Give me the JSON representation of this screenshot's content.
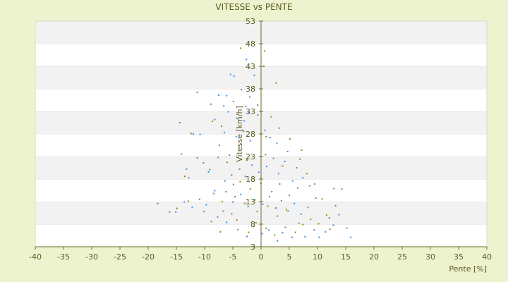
{
  "chart_data": {
    "type": "scatter",
    "title": "VITESSE vs PENTE",
    "xlabel": "Pente [%]",
    "ylabel": "Vitesse [km/h]",
    "xlim": [
      -40,
      40
    ],
    "ylim": [
      3,
      53
    ],
    "x_ticks": [
      -40,
      -35,
      -30,
      -25,
      -20,
      -15,
      -10,
      -5,
      0,
      5,
      10,
      15,
      20,
      25,
      30,
      35,
      40
    ],
    "y_ticks": [
      3,
      8,
      13,
      18,
      23,
      28,
      33,
      38,
      43,
      48,
      53
    ],
    "grid": "horizontal-bands",
    "legend": "none",
    "series": [
      {
        "color": "#3f8fd8",
        "points": [
          [
            -5.4,
            41.2
          ],
          [
            -4.8,
            40.8
          ],
          [
            -2.6,
            44.5
          ],
          [
            -1.2,
            41.0
          ],
          [
            -3.5,
            37.8
          ],
          [
            -11.3,
            37.2
          ],
          [
            -7.5,
            36.6
          ],
          [
            -6.1,
            36.5
          ],
          [
            -2.0,
            36.2
          ],
          [
            -6.6,
            34.2
          ],
          [
            -8.9,
            34.6
          ],
          [
            -2.7,
            34.1
          ],
          [
            -5.8,
            32.9
          ],
          [
            -2.2,
            32.8
          ],
          [
            -4.3,
            31.5
          ],
          [
            -8.2,
            31.2
          ],
          [
            -0.6,
            32.2
          ],
          [
            -3.0,
            30.9
          ],
          [
            -12.0,
            28.0
          ],
          [
            -10.8,
            27.9
          ],
          [
            -14.1,
            23.5
          ],
          [
            -6.5,
            28.3
          ],
          [
            -4.4,
            27.4
          ],
          [
            -1.9,
            26.5
          ],
          [
            -7.4,
            25.5
          ],
          [
            0.7,
            28.8
          ],
          [
            1.6,
            27.2
          ],
          [
            2.8,
            25.9
          ],
          [
            4.7,
            24.1
          ],
          [
            -13.2,
            20.2
          ],
          [
            -12.8,
            18.3
          ],
          [
            -10.2,
            21.6
          ],
          [
            -9.3,
            19.6
          ],
          [
            -7.6,
            22.8
          ],
          [
            -6.4,
            17.6
          ],
          [
            -5.6,
            23.3
          ],
          [
            -8.2,
            15.4
          ],
          [
            -9.7,
            12.3
          ],
          [
            -10.9,
            13.5
          ],
          [
            -12.2,
            11.8
          ],
          [
            -13.6,
            12.9
          ],
          [
            -15.1,
            10.7
          ],
          [
            -7.7,
            9.6
          ],
          [
            -6.1,
            8.4
          ],
          [
            -5.2,
            10.3
          ],
          [
            -4.1,
            6.8
          ],
          [
            -2.5,
            5.3
          ],
          [
            -1.3,
            7.5
          ],
          [
            0.2,
            5.9
          ],
          [
            1.4,
            6.7
          ],
          [
            2.9,
            4.3
          ],
          [
            3.8,
            6.1
          ],
          [
            5.5,
            5.1
          ],
          [
            6.7,
            8.2
          ],
          [
            7.8,
            5.2
          ],
          [
            9.4,
            6.7
          ],
          [
            10.3,
            5.1
          ],
          [
            11.4,
            6.3
          ],
          [
            12.1,
            9.4
          ],
          [
            12.8,
            7.8
          ],
          [
            13.8,
            10.1
          ],
          [
            14.3,
            15.8
          ],
          [
            15.2,
            7.1
          ],
          [
            15.9,
            5.1
          ],
          [
            8.6,
            16.5
          ],
          [
            9.7,
            13.8
          ],
          [
            7.4,
            18.3
          ],
          [
            6.3,
            20.5
          ],
          [
            5.6,
            17.6
          ],
          [
            4.2,
            21.9
          ],
          [
            3.1,
            19.2
          ],
          [
            2.2,
            22.6
          ],
          [
            1.0,
            20.8
          ],
          [
            -0.4,
            19.5
          ],
          [
            -1.6,
            21.1
          ],
          [
            -2.8,
            18.6
          ],
          [
            -3.8,
            20.2
          ],
          [
            -4.9,
            16.8
          ],
          [
            -6.2,
            15.2
          ],
          [
            -5.0,
            12.9
          ],
          [
            -3.6,
            14.6
          ],
          [
            -2.3,
            11.9
          ],
          [
            -1.1,
            13.4
          ],
          [
            0.3,
            12.4
          ],
          [
            1.5,
            14.1
          ],
          [
            2.6,
            11.6
          ],
          [
            3.6,
            13.2
          ],
          [
            4.8,
            10.9
          ],
          [
            5.9,
            12.6
          ],
          [
            7.1,
            10.2
          ],
          [
            8.3,
            11.7
          ]
        ]
      },
      {
        "color": "#8a8c1e",
        "points": [
          [
            0.6,
            46.4
          ],
          [
            -3.6,
            47.0
          ],
          [
            0.5,
            43.0
          ],
          [
            2.7,
            39.3
          ],
          [
            -0.6,
            34.4
          ],
          [
            -4.9,
            35.2
          ],
          [
            1.8,
            31.8
          ],
          [
            3.2,
            29.3
          ],
          [
            -8.6,
            30.8
          ],
          [
            -14.4,
            30.5
          ],
          [
            -12.4,
            28.1
          ],
          [
            -7.0,
            29.7
          ],
          [
            -3.1,
            28.6
          ],
          [
            0.9,
            27.4
          ],
          [
            5.1,
            26.9
          ],
          [
            7.2,
            24.4
          ],
          [
            -13.5,
            18.6
          ],
          [
            -11.3,
            22.7
          ],
          [
            -9.1,
            20.1
          ],
          [
            -6.0,
            21.7
          ],
          [
            -5.2,
            18.9
          ],
          [
            -2.5,
            22.2
          ],
          [
            0.8,
            23.4
          ],
          [
            3.8,
            20.9
          ],
          [
            6.9,
            22.4
          ],
          [
            8.1,
            19.2
          ],
          [
            9.5,
            16.9
          ],
          [
            12.9,
            15.9
          ],
          [
            10.8,
            13.6
          ],
          [
            13.2,
            12.1
          ],
          [
            11.6,
            10.0
          ],
          [
            -18.3,
            12.6
          ],
          [
            -16.2,
            10.7
          ],
          [
            -14.9,
            11.5
          ],
          [
            -12.9,
            13.1
          ],
          [
            -10.1,
            10.8
          ],
          [
            -8.8,
            8.6
          ],
          [
            -7.2,
            6.3
          ],
          [
            -6.7,
            10.9
          ],
          [
            -4.3,
            8.9
          ],
          [
            -2.2,
            6.2
          ],
          [
            -0.9,
            8.3
          ],
          [
            0.9,
            7.1
          ],
          [
            2.4,
            5.6
          ],
          [
            4.3,
            7.3
          ],
          [
            6.1,
            6.2
          ],
          [
            7.4,
            7.9
          ],
          [
            8.8,
            9.1
          ],
          [
            10.2,
            8.1
          ],
          [
            12.2,
            6.9
          ],
          [
            -3.7,
            17.4
          ],
          [
            -1.9,
            15.8
          ],
          [
            0.0,
            17.0
          ],
          [
            1.9,
            15.2
          ],
          [
            3.3,
            16.9
          ],
          [
            5.0,
            14.4
          ],
          [
            6.5,
            16.0
          ],
          [
            -2.9,
            12.6
          ],
          [
            -0.7,
            10.8
          ],
          [
            1.2,
            12.0
          ],
          [
            2.9,
            9.8
          ],
          [
            4.5,
            11.2
          ],
          [
            -4.6,
            14.1
          ],
          [
            -6.9,
            13.0
          ],
          [
            -8.4,
            14.8
          ]
        ]
      }
    ]
  }
}
